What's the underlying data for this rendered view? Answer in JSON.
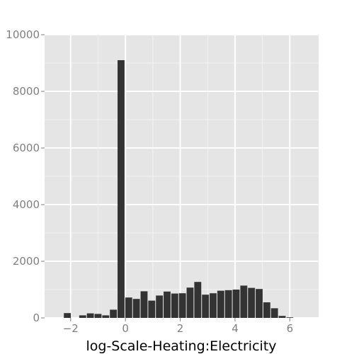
{
  "chart_data": {
    "type": "bar",
    "title": "",
    "xlabel": "log-Scale-Heating:Electricity",
    "ylabel": "",
    "xlim": [
      -2.95,
      7.05
    ],
    "ylim": [
      0,
      10000
    ],
    "bin_width": 0.28,
    "x_ticks": [
      -2,
      0,
      2,
      4,
      6
    ],
    "x_tick_labels": [
      "−2",
      "0",
      "2",
      "4",
      "6"
    ],
    "y_ticks": [
      0,
      2000,
      4000,
      6000,
      8000,
      10000
    ],
    "y_tick_labels": [
      "0",
      "2000",
      "4000",
      "6000",
      "8000",
      "10000"
    ],
    "grid": true,
    "colors": {
      "panel_background": "#e5e5e5",
      "grid_major": "#ffffff",
      "grid_minor": "#f2f2f2",
      "bar_fill": "#333333"
    },
    "bin_centers": [
      -2.12,
      -1.84,
      -1.56,
      -1.28,
      -1.0,
      -0.72,
      -0.44,
      -0.16,
      0.12,
      0.4,
      0.68,
      0.96,
      1.24,
      1.52,
      1.8,
      2.08,
      2.36,
      2.64,
      2.92,
      3.2,
      3.48,
      3.76,
      4.04,
      4.32,
      4.6,
      4.88,
      5.16,
      5.44,
      5.72,
      6.0,
      6.28
    ],
    "values": [
      170,
      0,
      90,
      160,
      140,
      90,
      290,
      9100,
      720,
      670,
      940,
      610,
      790,
      930,
      860,
      870,
      1070,
      1270,
      820,
      870,
      960,
      980,
      1000,
      1140,
      1060,
      1020,
      550,
      340,
      70,
      20,
      0
    ]
  }
}
